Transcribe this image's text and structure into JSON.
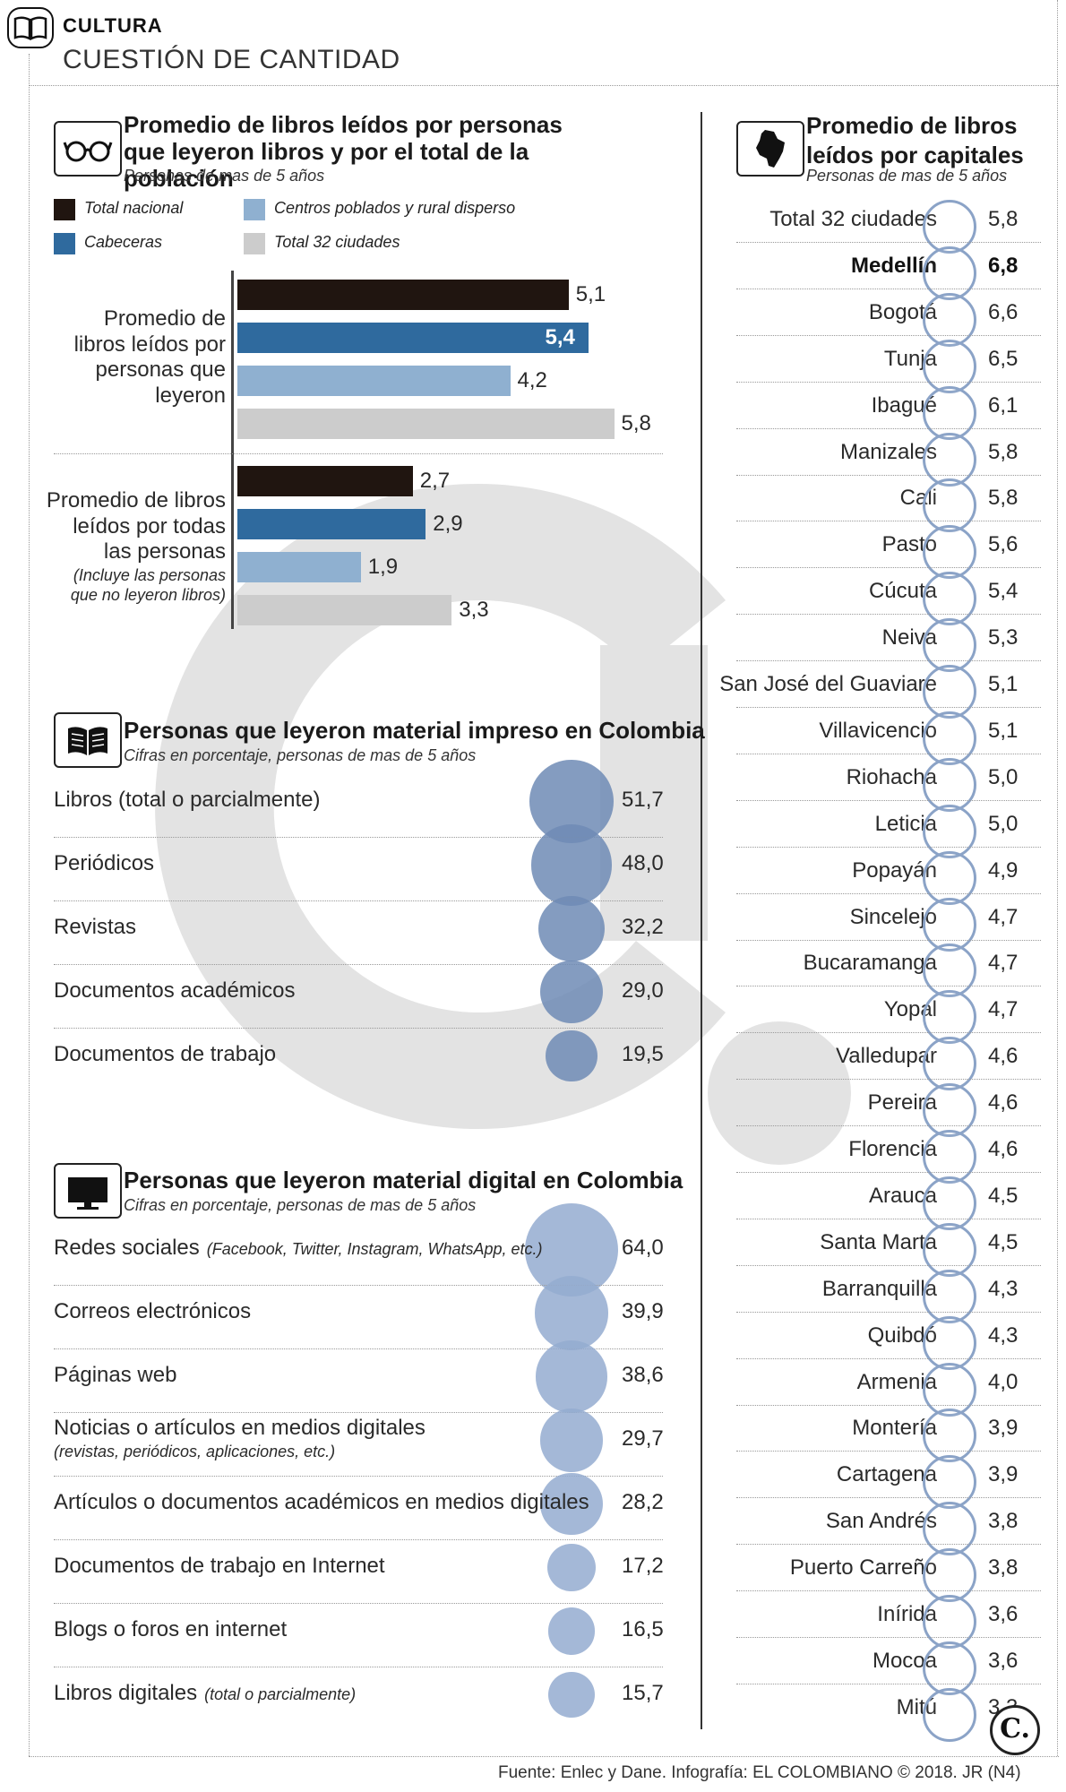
{
  "header": {
    "section": "CULTURA",
    "title": "CUESTIÓN DE CANTIDAD"
  },
  "colors": {
    "total_nacional": "#201510",
    "cabeceras": "#2f6a9e",
    "centros_poblados": "#8fb0d0",
    "total_32": "#cccccc",
    "bubble_impreso": "#6f8bb5",
    "bubble_digital": "#94acd0",
    "ring": "#8ba3c7",
    "watermark": "#dcdcdc"
  },
  "icons": {
    "header": "open-book-icon",
    "bar_chart": "reading-glasses-icon",
    "printed": "open-book-icon",
    "digital": "computer-monitor-icon",
    "capitals": "colombia-map-icon",
    "brand": "el-colombiano-logo"
  },
  "chart_data": [
    {
      "type": "bar",
      "orientation": "horizontal",
      "title": "Promedio de libros leídos por personas que leyeron libros y por el total de la población",
      "subtitle": "Personas de mas de 5 años",
      "legend": [
        "Total nacional",
        "Centros poblados y rural disperso",
        "Cabeceras",
        "Total 32 ciudades"
      ],
      "categories": [
        {
          "label": "Promedio de libros leídos por personas que leyeron",
          "lines": [
            "Promedio de",
            "libros leídos por",
            "personas que",
            "leyeron"
          ],
          "note_lines": []
        },
        {
          "label": "Promedio de libros leídos por todas las personas (Incluye las personas que no leyeron libros)",
          "lines": [
            "Promedio de libros",
            "leídos por todas",
            "las personas"
          ],
          "note_lines": [
            "(Incluye las personas",
            "que no leyeron libros)"
          ]
        }
      ],
      "series": [
        {
          "name": "Total nacional",
          "values": [
            5.1,
            2.7
          ],
          "labels": [
            "5,1",
            "2,7"
          ]
        },
        {
          "name": "Cabeceras",
          "values": [
            5.4,
            2.9
          ],
          "labels": [
            "5,4",
            "2,9"
          ]
        },
        {
          "name": "Centros poblados y rural disperso",
          "values": [
            4.2,
            1.9
          ],
          "labels": [
            "4,2",
            "1,9"
          ]
        },
        {
          "name": "Total 32 ciudades",
          "values": [
            5.8,
            3.3
          ],
          "labels": [
            "5,8",
            "3,3"
          ]
        }
      ],
      "xlim": [
        0,
        6
      ]
    },
    {
      "type": "bubble",
      "title": "Personas que leyeron material impreso en Colombia",
      "subtitle": "Cifras en porcentaje, personas de mas de 5 años",
      "rows": [
        {
          "label": "Libros (total o parcialmente)",
          "note": "",
          "value": 51.7,
          "display": "51,7"
        },
        {
          "label": "Periódicos",
          "note": "",
          "value": 48.0,
          "display": "48,0"
        },
        {
          "label": "Revistas",
          "note": "",
          "value": 32.2,
          "display": "32,2"
        },
        {
          "label": "Documentos académicos",
          "note": "",
          "value": 29.0,
          "display": "29,0"
        },
        {
          "label": "Documentos de trabajo",
          "note": "",
          "value": 19.5,
          "display": "19,5"
        }
      ]
    },
    {
      "type": "bubble",
      "title": "Personas que leyeron material digital en Colombia",
      "subtitle": "Cifras en porcentaje, personas de mas de 5 años",
      "rows": [
        {
          "label": "Redes sociales",
          "note": "(Facebook, Twitter, Instagram, WhatsApp, etc.)",
          "note_inline": true,
          "value": 64.0,
          "display": "64,0"
        },
        {
          "label": "Correos electrónicos",
          "note": "",
          "value": 39.9,
          "display": "39,9"
        },
        {
          "label": "Páginas web",
          "note": "",
          "value": 38.6,
          "display": "38,6"
        },
        {
          "label": "Noticias o artículos en medios digitales",
          "note": "(revistas, periódicos, aplicaciones, etc.)",
          "note_inline": false,
          "value": 29.7,
          "display": "29,7"
        },
        {
          "label": "Artículos o documentos académicos en medios digitales",
          "note": "",
          "value": 28.2,
          "display": "28,2"
        },
        {
          "label": "Documentos de trabajo en Internet",
          "note": "",
          "value": 17.2,
          "display": "17,2"
        },
        {
          "label": "Blogs o foros en internet",
          "note": "",
          "value": 16.5,
          "display": "16,5"
        },
        {
          "label": "Libros digitales",
          "note": "(total o parcialmente)",
          "note_inline": true,
          "value": 15.7,
          "display": "15,7"
        }
      ]
    },
    {
      "type": "table",
      "title": "Promedio de libros leídos por capitales",
      "subtitle": "Personas de mas de 5 años",
      "highlight": "Medellín",
      "rows": [
        {
          "city": "Total 32 ciudades",
          "value": 5.8,
          "display": "5,8"
        },
        {
          "city": "Medellín",
          "value": 6.8,
          "display": "6,8"
        },
        {
          "city": "Bogotá",
          "value": 6.6,
          "display": "6,6"
        },
        {
          "city": "Tunja",
          "value": 6.5,
          "display": "6,5"
        },
        {
          "city": "Ibagué",
          "value": 6.1,
          "display": "6,1"
        },
        {
          "city": "Manizales",
          "value": 5.8,
          "display": "5,8"
        },
        {
          "city": "Cali",
          "value": 5.8,
          "display": "5,8"
        },
        {
          "city": "Pasto",
          "value": 5.6,
          "display": "5,6"
        },
        {
          "city": "Cúcuta",
          "value": 5.4,
          "display": "5,4"
        },
        {
          "city": "Neiva",
          "value": 5.3,
          "display": "5,3"
        },
        {
          "city": "San José del Guaviare",
          "value": 5.1,
          "display": "5,1"
        },
        {
          "city": "Villavicencio",
          "value": 5.1,
          "display": "5,1"
        },
        {
          "city": "Riohacha",
          "value": 5.0,
          "display": "5,0"
        },
        {
          "city": "Leticia",
          "value": 5.0,
          "display": "5,0"
        },
        {
          "city": "Popayán",
          "value": 4.9,
          "display": "4,9"
        },
        {
          "city": "Sincelejo",
          "value": 4.7,
          "display": "4,7"
        },
        {
          "city": "Bucaramanga",
          "value": 4.7,
          "display": "4,7"
        },
        {
          "city": "Yopal",
          "value": 4.7,
          "display": "4,7"
        },
        {
          "city": "Valledupar",
          "value": 4.6,
          "display": "4,6"
        },
        {
          "city": "Pereira",
          "value": 4.6,
          "display": "4,6"
        },
        {
          "city": "Florencia",
          "value": 4.6,
          "display": "4,6"
        },
        {
          "city": "Arauca",
          "value": 4.5,
          "display": "4,5"
        },
        {
          "city": "Santa Marta",
          "value": 4.5,
          "display": "4,5"
        },
        {
          "city": "Barranquilla",
          "value": 4.3,
          "display": "4,3"
        },
        {
          "city": "Quibdó",
          "value": 4.3,
          "display": "4,3"
        },
        {
          "city": "Armenia",
          "value": 4.0,
          "display": "4,0"
        },
        {
          "city": "Montería",
          "value": 3.9,
          "display": "3,9"
        },
        {
          "city": "Cartagena",
          "value": 3.9,
          "display": "3,9"
        },
        {
          "city": "San Andrés",
          "value": 3.8,
          "display": "3,8"
        },
        {
          "city": "Puerto Carreño",
          "value": 3.8,
          "display": "3,8"
        },
        {
          "city": "Inírida",
          "value": 3.6,
          "display": "3,6"
        },
        {
          "city": "Mocoa",
          "value": 3.6,
          "display": "3,6"
        },
        {
          "city": "Mitú",
          "value": 3.3,
          "display": "3,3"
        }
      ]
    }
  ],
  "footer": {
    "source": "Fuente: Enlec y Dane. Infografía: EL COLOMBIANO © 2018. JR (N4)",
    "logo": "C."
  }
}
